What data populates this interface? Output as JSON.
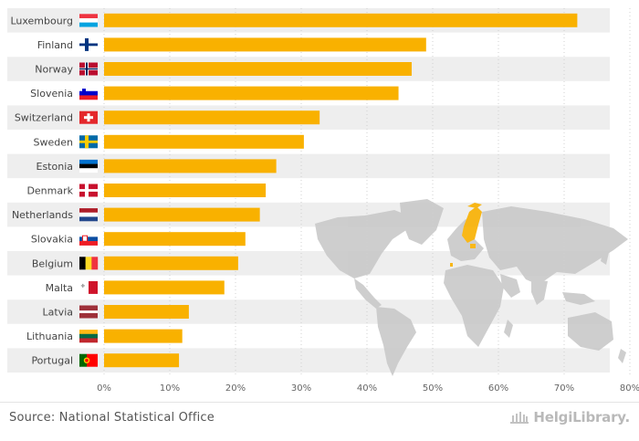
{
  "chart_data": {
    "type": "bar",
    "orientation": "horizontal",
    "categories": [
      "Luxembourg",
      "Finland",
      "Norway",
      "Slovenia",
      "Switzerland",
      "Sweden",
      "Estonia",
      "Denmark",
      "Netherlands",
      "Slovakia",
      "Belgium",
      "Malta",
      "Latvia",
      "Lithuania",
      "Portugal"
    ],
    "values": [
      72,
      49,
      46.8,
      44.8,
      32.8,
      30.4,
      26.2,
      24.6,
      23.7,
      21.5,
      20.4,
      18.3,
      12.9,
      11.9,
      11.4
    ],
    "unit": "%",
    "xlim": [
      0,
      80
    ],
    "xticks": [
      "0%",
      "10%",
      "20%",
      "30%",
      "40%",
      "50%",
      "60%",
      "70%",
      "80%"
    ],
    "bar_color": "#f9b100",
    "grid": true,
    "title": "",
    "xlabel": "",
    "ylabel": ""
  },
  "footer": {
    "source": "Source: National Statistical Office",
    "brand": "HelgiLibrary."
  },
  "colors": {
    "row_band": "#eeeeee",
    "map_land": "#c9c9c9",
    "map_highlight": "#f9b100"
  }
}
